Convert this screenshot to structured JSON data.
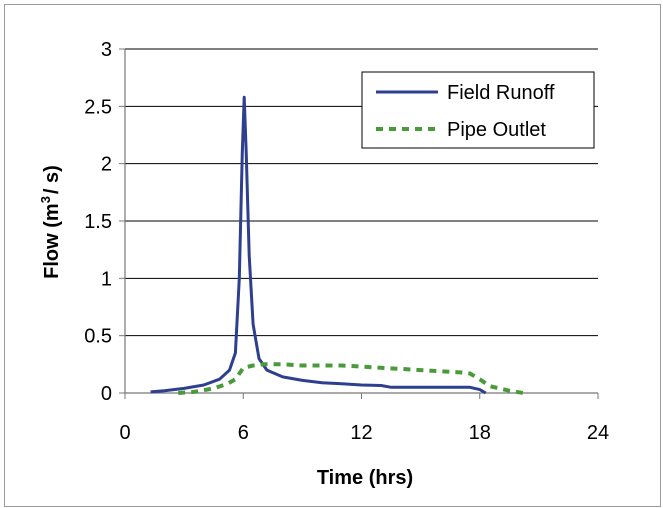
{
  "chart_data": {
    "type": "line",
    "xlabel": "Time (hrs)",
    "ylabel": {
      "prefix": "Flow (m",
      "sup": "3",
      "suffix": "/ s)"
    },
    "xlim": [
      0,
      24
    ],
    "ylim": [
      0,
      3
    ],
    "xticks": [
      0,
      6,
      12,
      18,
      24
    ],
    "yticks": [
      0,
      0.5,
      1,
      1.5,
      2,
      2.5,
      3
    ],
    "ytick_labels": [
      "0",
      "0.5",
      "1",
      "1.5",
      "2",
      "2.5",
      "3"
    ],
    "grid": "horizontal",
    "legend_position": "top-right",
    "series": [
      {
        "name": "Field Runoff",
        "color": "#2e3f8f",
        "style": "solid",
        "x": [
          1.3,
          2.0,
          3.0,
          4.0,
          4.8,
          5.3,
          5.6,
          5.8,
          5.95,
          6.05,
          6.15,
          6.3,
          6.5,
          6.8,
          7.2,
          8.0,
          9.0,
          10.0,
          11.0,
          12.0,
          13.0,
          13.5,
          14.0,
          15.0,
          16.0,
          17.0,
          17.5,
          18.0,
          18.3
        ],
        "values": [
          0.01,
          0.02,
          0.04,
          0.07,
          0.12,
          0.2,
          0.35,
          1.0,
          2.1,
          2.58,
          2.1,
          1.2,
          0.6,
          0.3,
          0.2,
          0.14,
          0.11,
          0.09,
          0.08,
          0.07,
          0.065,
          0.05,
          0.05,
          0.05,
          0.05,
          0.05,
          0.05,
          0.03,
          0.0
        ]
      },
      {
        "name": "Pipe Outlet",
        "color": "#4a9a3a",
        "style": "dashed",
        "x": [
          2.7,
          3.5,
          4.5,
          5.2,
          5.6,
          6.0,
          6.5,
          7.0,
          8.0,
          9.0,
          10.0,
          11.0,
          12.0,
          13.0,
          14.0,
          15.0,
          16.0,
          17.0,
          17.5,
          18.0,
          18.5,
          19.5,
          20.2
        ],
        "values": [
          0.0,
          0.01,
          0.04,
          0.08,
          0.12,
          0.22,
          0.24,
          0.25,
          0.25,
          0.24,
          0.24,
          0.24,
          0.23,
          0.22,
          0.21,
          0.2,
          0.19,
          0.18,
          0.17,
          0.12,
          0.06,
          0.02,
          0.0
        ]
      }
    ]
  }
}
